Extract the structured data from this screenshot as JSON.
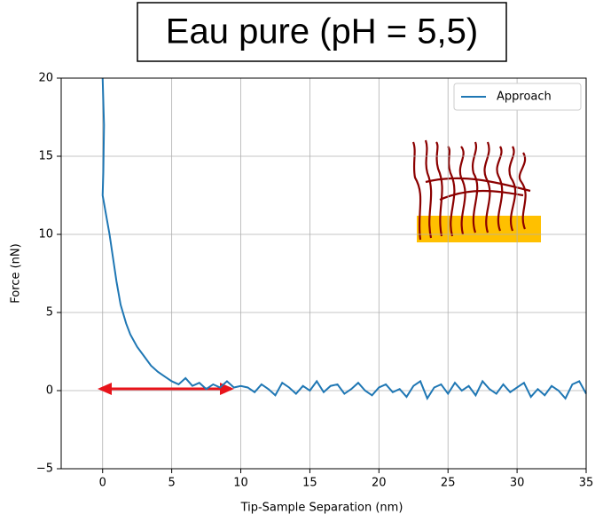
{
  "chart_data": {
    "type": "line",
    "title": "Eau pure (pH = 5,5)",
    "xlabel": "Tip-Sample Separation (nm)",
    "ylabel": "Force (nN)",
    "x": [
      0,
      0.1,
      0.05,
      0,
      0.3,
      0.5,
      0.7,
      1.0,
      1.3,
      1.7,
      2.0,
      2.5,
      3.0,
      3.5,
      4.0,
      4.5,
      5.0,
      5.5,
      6.0,
      6.5,
      7.0,
      7.5,
      8.0,
      8.5,
      9.0,
      9.5,
      10,
      10.5,
      11,
      11.5,
      12,
      12.5,
      13,
      13.5,
      14,
      14.5,
      15,
      15.5,
      16,
      16.5,
      17,
      17.5,
      18,
      18.5,
      19,
      19.5,
      20,
      20.5,
      21,
      21.5,
      22,
      22.5,
      23,
      23.5,
      24,
      24.5,
      25,
      25.5,
      26,
      26.5,
      27,
      27.5,
      28,
      28.5,
      29,
      29.5,
      30,
      30.5,
      31,
      31.5,
      32,
      32.5,
      33,
      33.5,
      34,
      34.5,
      35
    ],
    "series": [
      {
        "name": "Approach",
        "color": "#1f77b4",
        "values": [
          20,
          17,
          14,
          12.5,
          11,
          10,
          8.8,
          7,
          5.5,
          4.3,
          3.6,
          2.8,
          2.2,
          1.6,
          1.2,
          0.9,
          0.6,
          0.4,
          0.8,
          0.3,
          0.5,
          0.1,
          0.4,
          0.2,
          0.6,
          0.2,
          0.3,
          0.2,
          -0.1,
          0.4,
          0.1,
          -0.3,
          0.5,
          0.2,
          -0.2,
          0.3,
          0.0,
          0.6,
          -0.1,
          0.3,
          0.4,
          -0.2,
          0.1,
          0.5,
          0.0,
          -0.3,
          0.2,
          0.4,
          -0.1,
          0.1,
          -0.4,
          0.3,
          0.6,
          -0.5,
          0.2,
          0.4,
          -0.2,
          0.5,
          0.0,
          0.3,
          -0.3,
          0.6,
          0.1,
          -0.2,
          0.4,
          -0.1,
          0.2,
          0.5,
          -0.4,
          0.1,
          -0.3,
          0.3,
          0.0,
          -0.5,
          0.4,
          0.6,
          -0.2
        ]
      }
    ],
    "xlim": [
      -3,
      35
    ],
    "ylim": [
      -5,
      20
    ],
    "xticks": [
      0,
      5,
      10,
      15,
      20,
      25,
      30,
      35
    ],
    "yticks": [
      {
        "value": -5,
        "label": "−5"
      },
      0,
      5,
      10,
      15,
      20
    ],
    "grid": true,
    "legend": "upper right"
  }
}
